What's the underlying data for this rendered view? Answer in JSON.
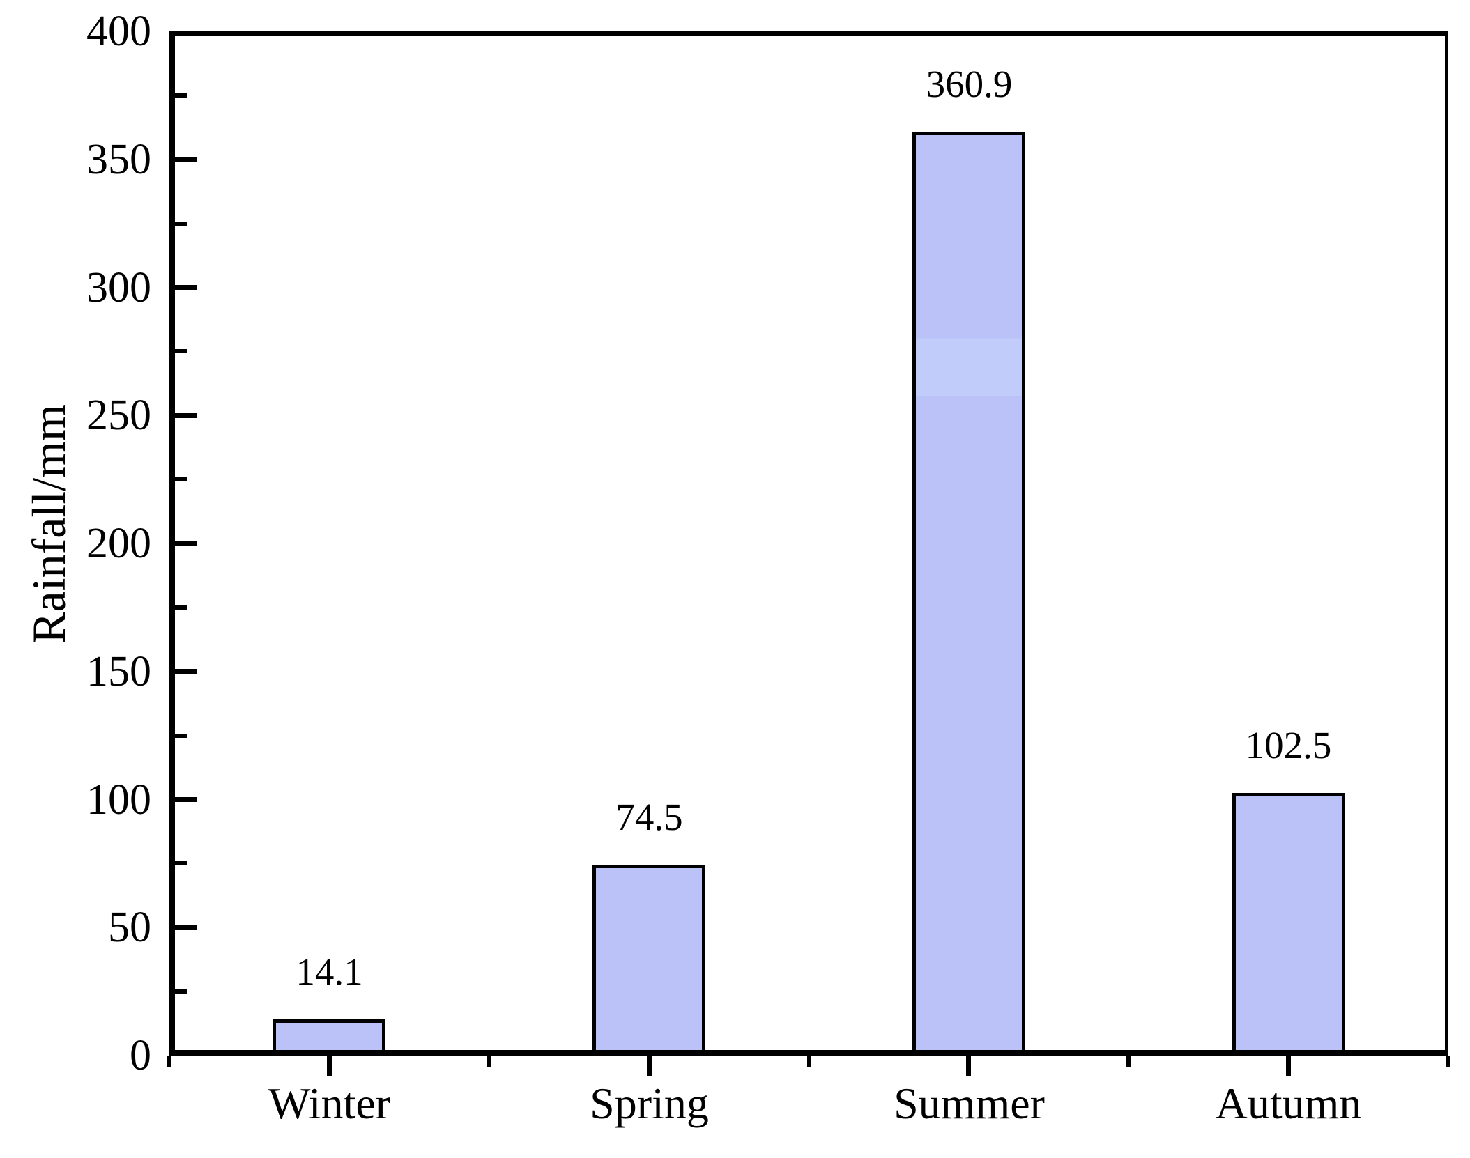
{
  "chart_data": {
    "type": "bar",
    "title": "",
    "ylabel": "Rainfall/mm",
    "xlabel": "",
    "categories": [
      "Winter",
      "Spring",
      "Summer",
      "Autumn"
    ],
    "values": [
      14.1,
      74.5,
      360.9,
      102.5
    ],
    "labels": [
      "14.1",
      "74.5",
      "360.9",
      "102.5"
    ],
    "ylim": [
      0,
      400
    ],
    "y_major_step": 50,
    "y_minor_step": 25,
    "y_tick_labels": [
      "0",
      "50",
      "100",
      "150",
      "200",
      "250",
      "300",
      "350",
      "400"
    ],
    "grid": false,
    "legend": false,
    "tick_direction_y": "in",
    "tick_direction_x": "out",
    "bar_fill_color": "#bbc2f8",
    "bar_border_color": "#000000",
    "axis_color": "#000000",
    "text_color": "#000000",
    "background_color": "#ffffff",
    "summer_highlight_band": {
      "category_index": 2,
      "value_from": 258,
      "value_to": 281,
      "color": "#c1ccfa"
    }
  }
}
